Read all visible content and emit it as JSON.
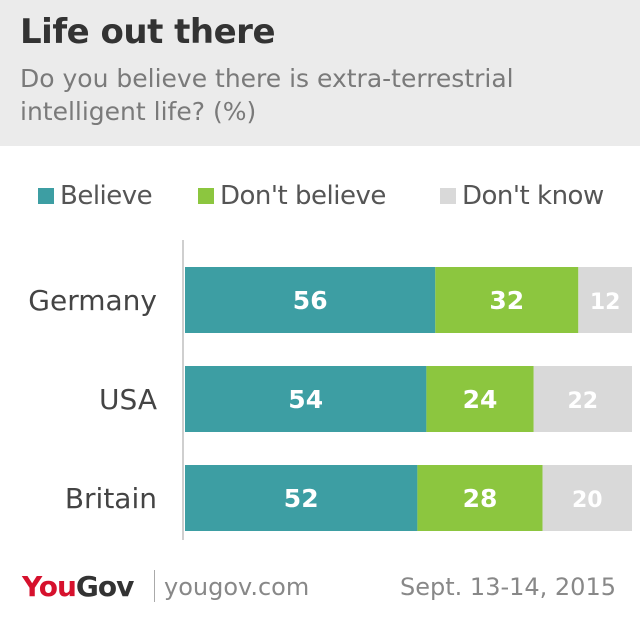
{
  "header": {
    "title": "Life out there",
    "subtitle": "Do you believe there is extra-terrestrial intelligent life? (%)"
  },
  "colors": {
    "believe": "#3d9ea3",
    "dont_believe": "#8cc63f",
    "dont_know": "#d9d9d9",
    "header_bg": "#ebebeb",
    "brand_red": "#d6112d"
  },
  "chart_data": {
    "type": "bar",
    "orientation": "horizontal",
    "stacked": true,
    "categories": [
      "Germany",
      "USA",
      "Britain"
    ],
    "series": [
      {
        "name": "Believe",
        "values": [
          56,
          54,
          52
        ]
      },
      {
        "name": "Don't believe",
        "values": [
          32,
          24,
          28
        ]
      },
      {
        "name": "Don't know",
        "values": [
          12,
          22,
          20
        ]
      }
    ],
    "xlim": [
      0,
      100
    ],
    "legend": "top",
    "grid": false,
    "data_labels": true
  },
  "footer": {
    "brand_you": "You",
    "brand_gov": "Gov",
    "site": "yougov.com",
    "date": "Sept. 13-14, 2015"
  }
}
